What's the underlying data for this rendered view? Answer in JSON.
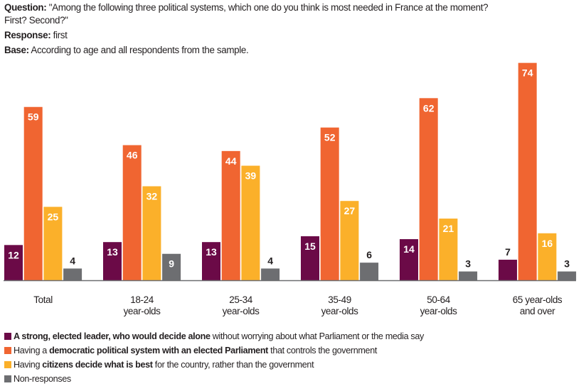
{
  "header": {
    "question_label": "Question:",
    "question_text_line1": " \"Among the following three political systems, which one do you think is most needed in France at the moment?",
    "question_text_line2": "First? Second?\"",
    "response_label": "Response:",
    "response_text": " first",
    "base_label": "Base:",
    "base_text": " According to age and all respondents from the sample."
  },
  "colors": {
    "leader": "#6b0a47",
    "democratic": "#f06531",
    "citizens": "#fbb02a",
    "nonresponse": "#6d6e71",
    "axis": "#6d6e71",
    "label_inside": "#ffffff",
    "label_outside": "#231f20"
  },
  "legend": [
    {
      "key": "leader",
      "bold": "A strong, elected leader, who would decide alone",
      "pre": "",
      "post": " without worrying about what Parliament or the media say"
    },
    {
      "key": "democratic",
      "pre": "Having a ",
      "bold": "democratic political system with an elected Parliament",
      "post": " that controls the government"
    },
    {
      "key": "citizens",
      "pre": "Having ",
      "bold": "citizens decide what is best",
      "post": " for the country, rather than the government"
    },
    {
      "key": "nonresponse",
      "pre": "Non-responses",
      "bold": "",
      "post": ""
    }
  ],
  "chart_data": {
    "type": "bar",
    "title": "Among the following three political systems, which one do you think is most needed in France at the moment? (first response)",
    "xlabel": "",
    "ylabel": "",
    "ylim": [
      0,
      75
    ],
    "grid": false,
    "legend_position": "bottom",
    "categories": [
      [
        "Total"
      ],
      [
        "18-24",
        "year-olds"
      ],
      [
        "25-34",
        "year-olds"
      ],
      [
        "35-49",
        "year-olds"
      ],
      [
        "50-64",
        "year-olds"
      ],
      [
        "65 year-olds",
        "and over"
      ]
    ],
    "series": [
      {
        "key": "leader",
        "name": "A strong, elected leader, who would decide alone without worrying about what Parliament or the media say",
        "values": [
          12,
          13,
          13,
          15,
          14,
          7
        ]
      },
      {
        "key": "democratic",
        "name": "Having a democratic political system with an elected Parliament that controls the government",
        "values": [
          59,
          46,
          44,
          52,
          62,
          74
        ]
      },
      {
        "key": "citizens",
        "name": "Having citizens decide what is best for the country, rather than the government",
        "values": [
          25,
          32,
          39,
          27,
          21,
          16
        ]
      },
      {
        "key": "nonresponse",
        "name": "Non-responses",
        "values": [
          4,
          9,
          4,
          6,
          3,
          3
        ]
      }
    ]
  }
}
